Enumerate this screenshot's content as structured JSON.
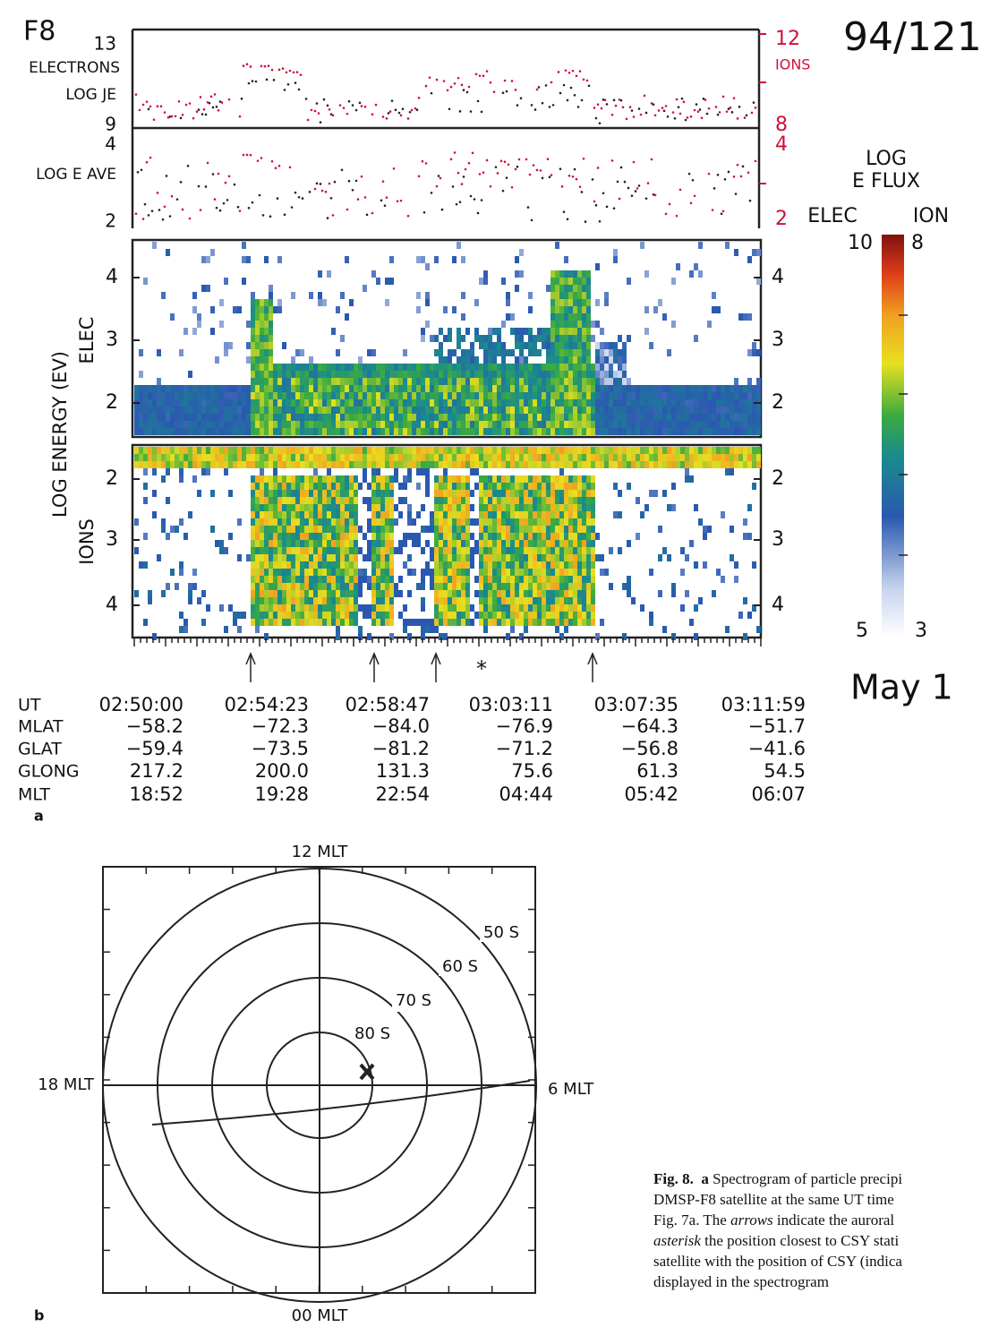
{
  "panel_a": {
    "satellite": "F8",
    "date_code": "94/121",
    "date": "May 1",
    "je_axis": {
      "label_lines": [
        "ELECTRONS",
        "LOG JE"
      ],
      "left_ticks": [
        "13",
        "9"
      ],
      "right_ticks": [
        "12",
        "8"
      ],
      "right_label": "IONS"
    },
    "eave_axis": {
      "label": "LOG E AVE",
      "left_ticks": [
        "4",
        "2"
      ],
      "right_ticks": [
        "4",
        "2"
      ]
    },
    "energy_axis": {
      "label": "LOG ENERGY (EV)",
      "elec_label": "ELEC",
      "ion_label": "IONS",
      "elec_ticks": [
        "4",
        "3",
        "2"
      ],
      "ion_ticks": [
        "2",
        "3",
        "4"
      ]
    },
    "colorbar": {
      "title_lines": [
        "LOG",
        "E FLUX"
      ],
      "elec_label": "ELEC",
      "ion_label": "ION",
      "elec_max": "10",
      "ion_max": "8",
      "elec_min": "5",
      "ion_min": "3"
    },
    "marker": "*",
    "table": {
      "row_labels": [
        "UT",
        "MLAT",
        "GLAT",
        "GLONG",
        "MLT"
      ],
      "rows": [
        [
          "02:50:00",
          "02:54:23",
          "02:58:47",
          "03:03:11",
          "03:07:35",
          "03:11:59"
        ],
        [
          "−58.2",
          "−72.3",
          "−84.0",
          "−76.9",
          "−64.3",
          "−51.7"
        ],
        [
          "−59.4",
          "−73.5",
          "−81.2",
          "−71.2",
          "−56.8",
          "−41.6"
        ],
        [
          "217.2",
          "200.0",
          "131.3",
          "75.6",
          "61.3",
          "54.5"
        ],
        [
          "18:52",
          "19:28",
          "22:54",
          "04:44",
          "05:42",
          "06:07"
        ]
      ]
    },
    "label": "a"
  },
  "panel_b": {
    "mlt_labels": {
      "top": "12 MLT",
      "bottom": "00 MLT",
      "left": "18 MLT",
      "right": "6 MLT"
    },
    "circle_labels": [
      "50 S",
      "60 S",
      "70 S",
      "80 S"
    ],
    "label": "b"
  },
  "caption": {
    "lines": [
      [
        {
          "text": "Fig. 8.",
          "style": "bold"
        },
        {
          "text": "  a",
          "style": "bold"
        },
        {
          "text": " Spectrogram of particle precipi",
          "style": "normal"
        }
      ],
      [
        {
          "text": "DMSP-F8 satellite at the same UT time",
          "style": "normal"
        }
      ],
      [
        {
          "text": "Fig. 7a. The ",
          "style": "normal"
        },
        {
          "text": "arrows",
          "style": "italic"
        },
        {
          "text": " indicate the auroral",
          "style": "normal"
        }
      ],
      [
        {
          "text": "asterisk",
          "style": "italic"
        },
        {
          "text": " the position closest to CSY stati",
          "style": "normal"
        }
      ],
      [
        {
          "text": "satellite with the position of CSY (indica",
          "style": "normal"
        }
      ],
      [
        {
          "text": "displayed in the spectrogram",
          "style": "normal"
        }
      ]
    ]
  }
}
